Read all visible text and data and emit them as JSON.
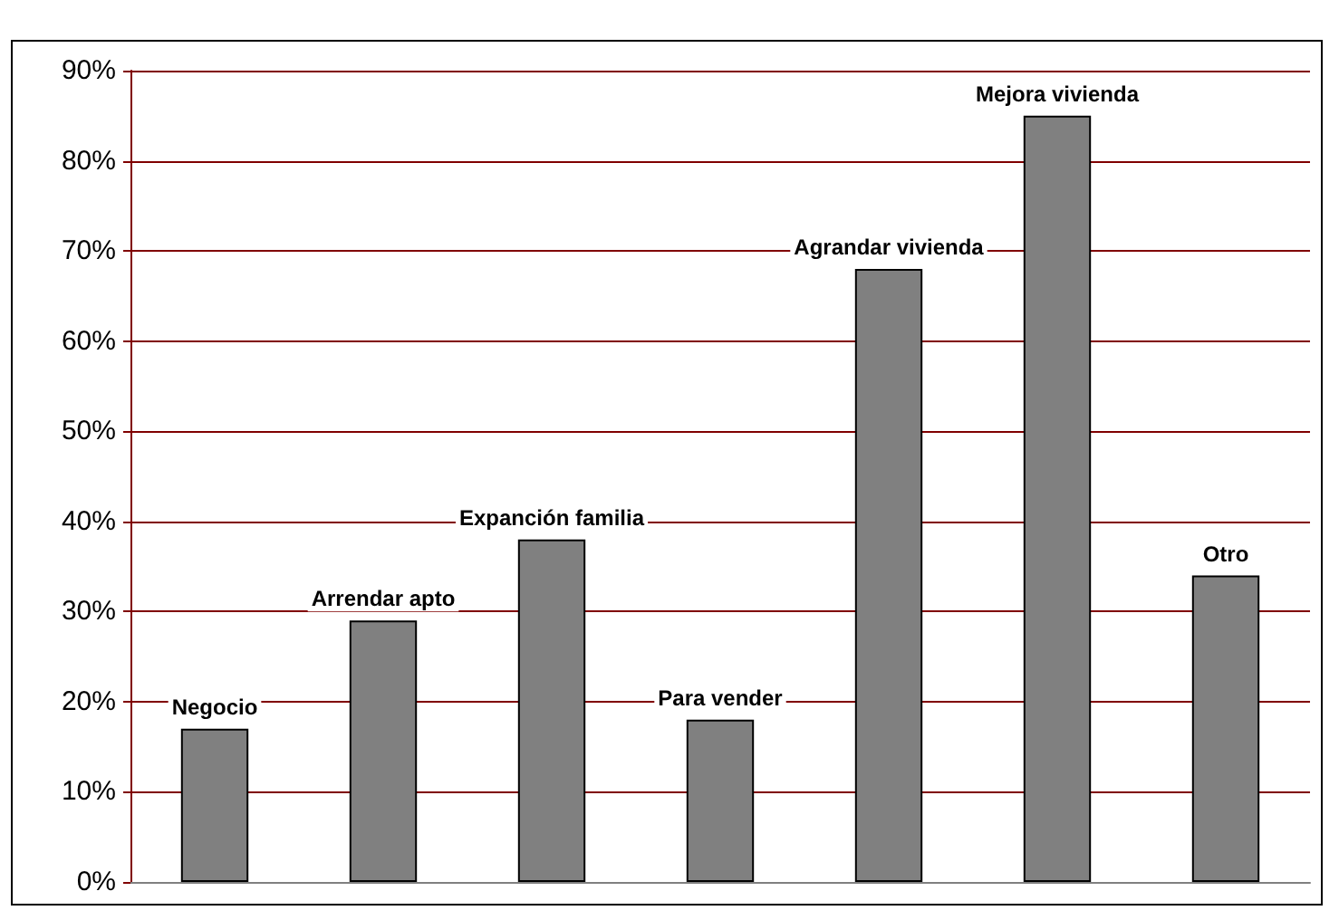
{
  "chart_data": {
    "type": "bar",
    "categories": [
      "Negocio",
      "Arrendar apto",
      "Expanción familia",
      "Para vender",
      "Agrandar vivienda",
      "Mejora vivienda",
      "Otro"
    ],
    "values": [
      17,
      29,
      38,
      18,
      68,
      85,
      34
    ],
    "color": "#808080",
    "ylim": [
      0,
      90
    ],
    "yticks": [
      {
        "value": 0,
        "label": "0%"
      },
      {
        "value": 10,
        "label": "10%"
      },
      {
        "value": 20,
        "label": "20%"
      },
      {
        "value": 30,
        "label": "30%"
      },
      {
        "value": 40,
        "label": "40%"
      },
      {
        "value": 50,
        "label": "50%"
      },
      {
        "value": 60,
        "label": "60%"
      },
      {
        "value": 70,
        "label": "70%"
      },
      {
        "value": 80,
        "label": "80%"
      },
      {
        "value": 90,
        "label": "90%"
      }
    ],
    "grid": "y",
    "tick_labels": "y"
  }
}
